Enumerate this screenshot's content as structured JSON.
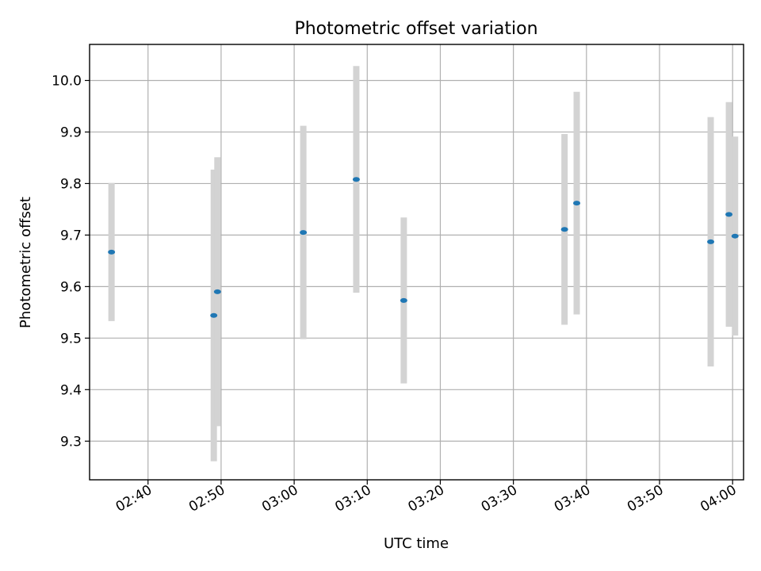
{
  "chart_data": {
    "type": "scatter",
    "title": "Photometric offset variation",
    "xlabel": "UTC time",
    "ylabel": "Photometric offset",
    "x_unit": "time (HH:MM UTC)",
    "xlim": [
      "02:32:00",
      "04:01:30"
    ],
    "ylim": [
      9.225,
      10.07
    ],
    "grid": true,
    "x_ticks": [
      "02:40",
      "02:50",
      "03:00",
      "03:10",
      "03:20",
      "03:30",
      "03:40",
      "03:50",
      "04:00"
    ],
    "y_ticks": [
      "9.3",
      "9.4",
      "9.5",
      "9.6",
      "9.7",
      "9.8",
      "9.9",
      "10.0"
    ],
    "series": [
      {
        "marker_color": "#1f77b4",
        "errorbar_color": "#d3d3d3",
        "points": [
          {
            "x": "02:35:00",
            "y": 9.667,
            "err": 0.134
          },
          {
            "x": "02:49:00",
            "y": 9.544,
            "err": 0.283
          },
          {
            "x": "02:49:30",
            "y": 9.59,
            "err": 0.261
          },
          {
            "x": "03:01:15",
            "y": 9.705,
            "err": 0.207
          },
          {
            "x": "03:08:30",
            "y": 9.808,
            "err": 0.22
          },
          {
            "x": "03:15:00",
            "y": 9.573,
            "err": 0.161
          },
          {
            "x": "03:37:00",
            "y": 9.711,
            "err": 0.185
          },
          {
            "x": "03:38:40",
            "y": 9.762,
            "err": 0.216
          },
          {
            "x": "03:57:00",
            "y": 9.687,
            "err": 0.242
          },
          {
            "x": "03:59:30",
            "y": 9.74,
            "err": 0.218
          },
          {
            "x": "04:00:20",
            "y": 9.698,
            "err": 0.193
          }
        ]
      }
    ]
  }
}
